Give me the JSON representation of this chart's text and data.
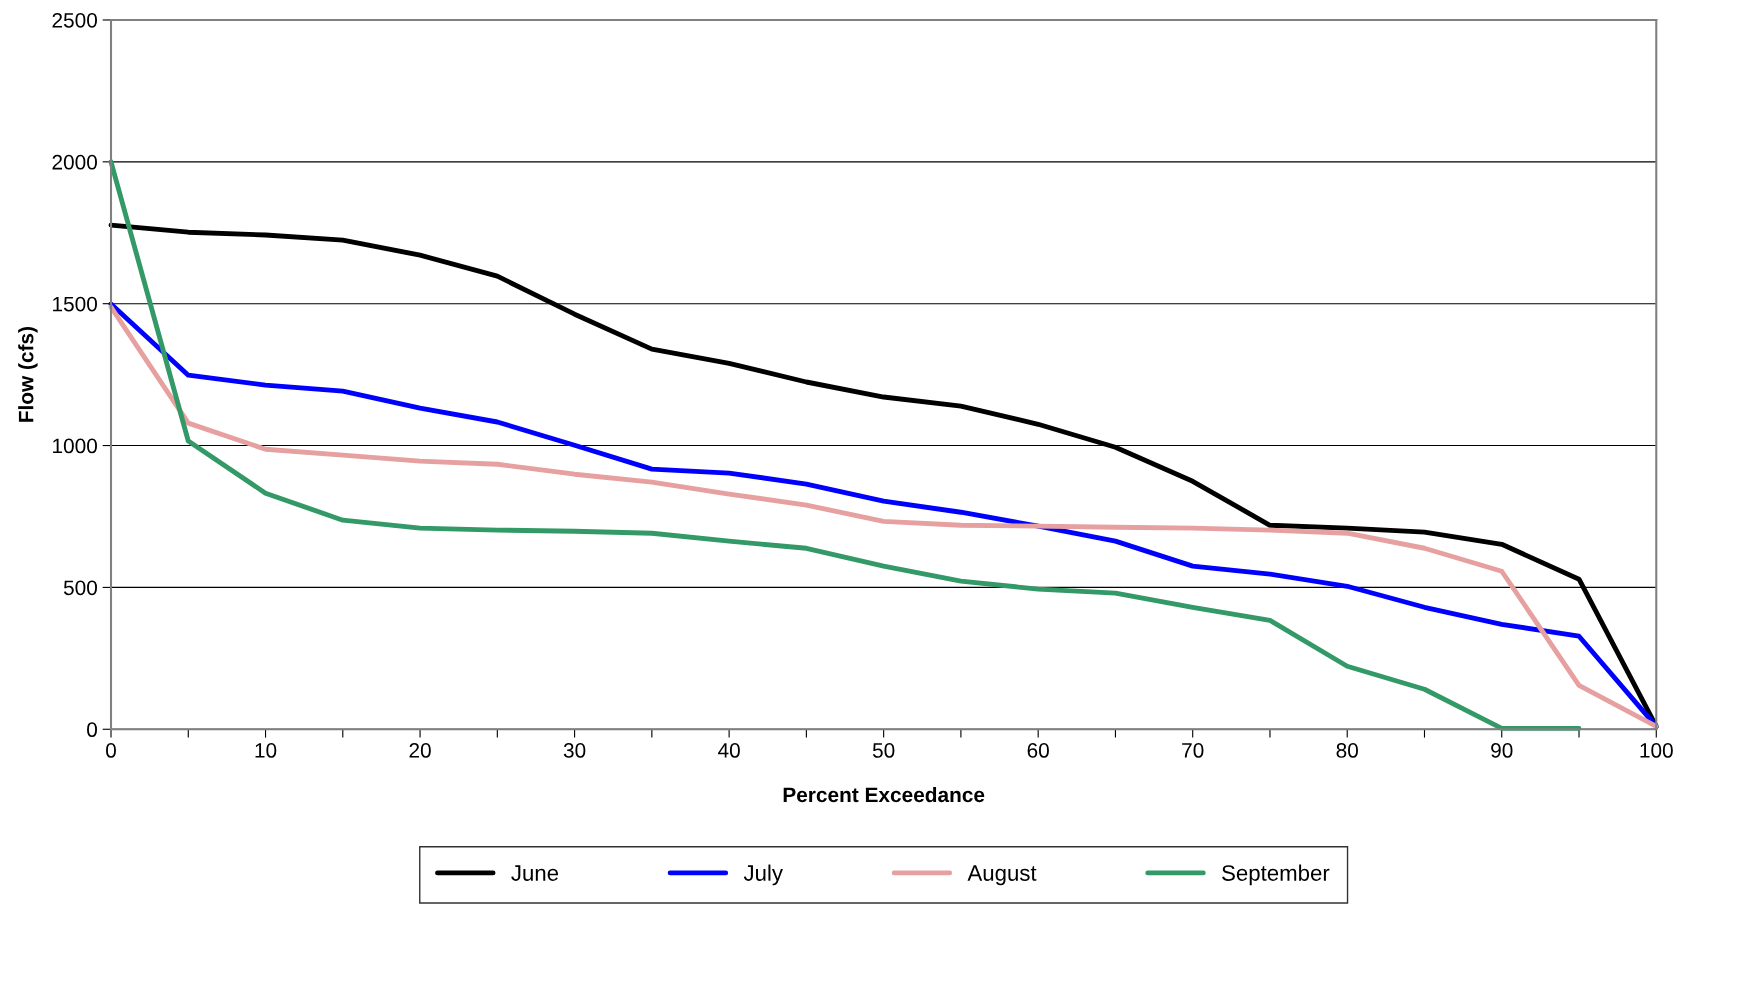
{
  "chart_data": {
    "type": "line",
    "xlabel": "Percent Exceedance",
    "ylabel": "Flow (cfs)",
    "x": [
      0,
      5,
      10,
      15,
      20,
      25,
      30,
      35,
      40,
      45,
      50,
      55,
      60,
      65,
      70,
      75,
      80,
      85,
      90,
      95,
      100
    ],
    "series": [
      {
        "name": "June",
        "color": "#000000",
        "values": [
          1777,
          1752,
          1742,
          1724,
          1671,
          1597,
          1463,
          1340,
          1290,
          1224,
          1171,
          1139,
          1075,
          994,
          874,
          719,
          709,
          695,
          652,
          529,
          10
        ]
      },
      {
        "name": "July",
        "color": "#0000ff",
        "values": [
          1499,
          1248,
          1213,
          1192,
          1132,
          1083,
          1001,
          917,
          903,
          864,
          804,
          765,
          716,
          663,
          575,
          547,
          504,
          430,
          370,
          328,
          10
        ]
      },
      {
        "name": "August",
        "color": "#e6a0a0",
        "values": [
          1488,
          1079,
          987,
          966,
          945,
          934,
          899,
          871,
          829,
          790,
          733,
          719,
          716,
          712,
          709,
          702,
          691,
          638,
          557,
          155,
          10
        ]
      },
      {
        "name": "September",
        "color": "#339966",
        "values": [
          2000,
          1016,
          832,
          737,
          709,
          702,
          698,
          691,
          663,
          638,
          575,
          522,
          494,
          480,
          430,
          384,
          222,
          141,
          3,
          3,
          null
        ]
      }
    ],
    "xlim": [
      0,
      100
    ],
    "ylim": [
      0,
      2500
    ],
    "xticks": [
      0,
      {
        "value": 5,
        "label": null
      },
      10,
      {
        "value": 15,
        "label": null
      },
      20,
      {
        "value": 25,
        "label": null
      },
      30,
      {
        "value": 35,
        "label": null
      },
      40,
      {
        "value": 45,
        "label": null
      },
      50,
      {
        "value": 55,
        "label": null
      },
      60,
      {
        "value": 65,
        "label": null
      },
      70,
      {
        "value": 75,
        "label": null
      },
      80,
      {
        "value": 85,
        "label": null
      },
      90,
      {
        "value": 95,
        "label": null
      },
      100
    ],
    "yticks": [
      0,
      500,
      1000,
      1500,
      2000,
      2500
    ],
    "grid": "y",
    "legend": "bottom",
    "marker": "none",
    "line_style": "solid"
  }
}
